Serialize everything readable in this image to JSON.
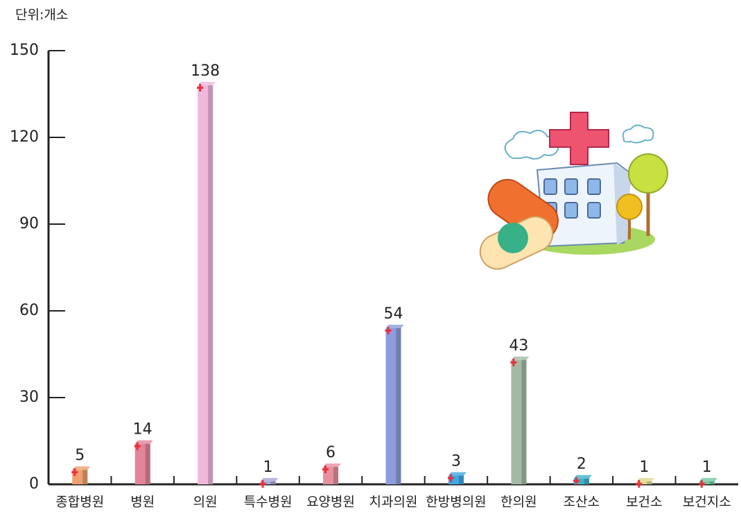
{
  "chart_data": {
    "type": "bar",
    "unit": "단위:개소",
    "categories": [
      "종합병원",
      "병원",
      "의원",
      "특수병원",
      "요양병원",
      "치과의원",
      "한방병의원",
      "한의원",
      "조산소",
      "보건소",
      "보건지소"
    ],
    "values": [
      5,
      14,
      138,
      1,
      6,
      54,
      3,
      43,
      2,
      1,
      1
    ],
    "colors": [
      "#f0a070",
      "#e2849a",
      "#f0b8dc",
      "#a8a8d8",
      "#e8909e",
      "#8c9cdc",
      "#40a8e0",
      "#a4baa4",
      "#40b0c8",
      "#e0d890",
      "#70c8a0"
    ],
    "ylim": [
      0,
      150
    ],
    "yticks": [
      0,
      30,
      60,
      90,
      120,
      150
    ]
  }
}
